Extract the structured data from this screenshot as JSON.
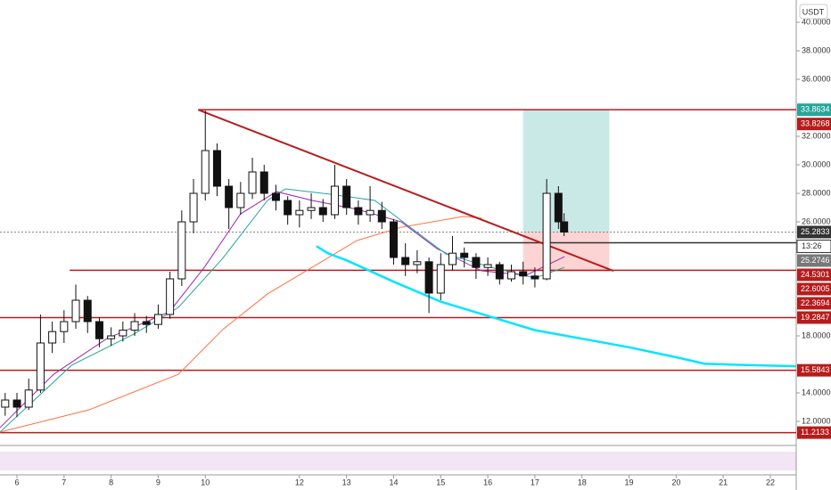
{
  "chart_data": {
    "type": "candlestick",
    "currency": "USDT",
    "countdown": "13:26",
    "xlim": [
      5.64,
      22.55
    ],
    "xticks": [
      6,
      7,
      8,
      9,
      10,
      12,
      13,
      14,
      15,
      16,
      17,
      18,
      19,
      20,
      21,
      22
    ],
    "ylim": [
      10.3125,
      41.5625
    ],
    "yticks": [
      {
        "value": 12,
        "label": "12.0000"
      },
      {
        "value": 14,
        "label": "14.0000"
      },
      {
        "value": 18,
        "label": "18.0000"
      },
      {
        "value": 26,
        "label": "26.0000"
      },
      {
        "value": 28,
        "label": "28.0000"
      },
      {
        "value": 30,
        "label": "30.0000"
      },
      {
        "value": 32,
        "label": "32.0000"
      },
      {
        "value": 36,
        "label": "36.0000"
      },
      {
        "value": 38,
        "label": "38.0000"
      },
      {
        "value": 40,
        "label": "40.0000"
      }
    ],
    "x": [
      5.75,
      6,
      6.25,
      6.5,
      6.75,
      7,
      7.25,
      7.5,
      7.75,
      8,
      8.25,
      8.5,
      8.75,
      9,
      9.25,
      9.5,
      9.75,
      10,
      10.25,
      10.5,
      10.75,
      11,
      11.25,
      11.5,
      11.75,
      12,
      12.25,
      12.5,
      12.75,
      13,
      13.25,
      13.5,
      13.75,
      14,
      14.25,
      14.5,
      14.75,
      15,
      15.25,
      15.5,
      15.75,
      16,
      16.25,
      16.5,
      16.75,
      17,
      17.25,
      17.5,
      17.62
    ],
    "open": [
      13.0,
      13.5,
      13.0,
      14.2,
      17.5,
      18.3,
      19.0,
      20.5,
      19.0,
      17.8,
      18.0,
      18.4,
      19.0,
      18.8,
      19.5,
      22.0,
      26.0,
      28.0,
      31.0,
      28.5,
      27.0,
      28.0,
      29.5,
      28.0,
      27.5,
      26.5,
      26.8,
      27.0,
      26.5,
      28.5,
      27.0,
      26.5,
      26.8,
      26.0,
      23.5,
      23.0,
      23.2,
      21.0,
      23.0,
      23.8,
      23.5,
      22.8,
      23.0,
      22.0,
      22.5,
      22.2,
      22.0,
      28.0,
      26.0
    ],
    "high": [
      14.0,
      14.0,
      15.0,
      19.5,
      19.0,
      19.8,
      21.6,
      20.8,
      19.3,
      18.6,
      19.0,
      19.6,
      19.4,
      20.2,
      22.5,
      26.8,
      29.0,
      33.8,
      31.5,
      29.0,
      28.8,
      30.5,
      30.0,
      28.6,
      27.8,
      27.5,
      28.0,
      27.6,
      30.0,
      29.0,
      27.5,
      28.5,
      27.4,
      26.2,
      24.5,
      24.0,
      23.5,
      23.8,
      25.0,
      24.2,
      23.8,
      23.5,
      23.2,
      23.0,
      23.2,
      22.8,
      29.0,
      28.5,
      26.6
    ],
    "low": [
      12.4,
      12.3,
      12.8,
      14.0,
      16.8,
      17.5,
      18.5,
      18.2,
      17.2,
      17.3,
      17.6,
      18.0,
      18.2,
      18.5,
      19.2,
      21.5,
      25.2,
      27.5,
      27.8,
      25.5,
      26.5,
      27.6,
      27.5,
      26.8,
      25.8,
      25.6,
      26.2,
      26.0,
      26.2,
      26.5,
      25.8,
      26.0,
      25.5,
      23.0,
      22.2,
      22.4,
      19.6,
      20.5,
      22.6,
      22.8,
      22.0,
      22.2,
      21.6,
      21.8,
      21.6,
      21.4,
      21.9,
      25.5,
      25.0
    ],
    "close": [
      13.5,
      13.0,
      14.2,
      17.5,
      18.3,
      19.0,
      20.5,
      19.0,
      17.8,
      18.0,
      18.4,
      19.0,
      18.8,
      19.5,
      22.0,
      26.0,
      28.0,
      31.0,
      28.5,
      27.0,
      28.0,
      29.5,
      28.0,
      27.5,
      26.5,
      26.8,
      27.0,
      26.5,
      28.5,
      27.0,
      26.5,
      26.8,
      26.0,
      23.5,
      23.0,
      23.2,
      21.0,
      23.0,
      23.8,
      23.5,
      22.8,
      23.0,
      22.0,
      22.5,
      22.2,
      22.0,
      28.0,
      26.0,
      25.2833
    ],
    "indicators": [
      {
        "color": "#ff7043",
        "x": [
          5.64,
          7.53,
          9.43,
          10.37,
          11.32,
          12.27,
          13.22,
          14.16,
          15.49,
          15.87
        ],
        "values": [
          11.25,
          12.81,
          15.31,
          18.44,
          20.94,
          22.81,
          24.69,
          25.62,
          26.38,
          26.25
        ]
      },
      {
        "color": "#9c27b0",
        "x": [
          5.64,
          6.78,
          7.91,
          9.24,
          9.98,
          10.75,
          11.51,
          12.27,
          13.22,
          14.16,
          14.92,
          15.87,
          16.81,
          17.63
        ],
        "values": [
          11.56,
          15.31,
          17.81,
          19.69,
          22.81,
          26.56,
          28.12,
          27.5,
          26.88,
          26.0,
          24.12,
          22.56,
          22.25,
          23.56
        ]
      },
      {
        "color": "#26a69a",
        "x": [
          5.64,
          7.16,
          8.48,
          9.43,
          10.37,
          11.32,
          11.7,
          12.65,
          13.6,
          14.35,
          15.11,
          16.06,
          17.0,
          17.63
        ],
        "values": [
          11.25,
          15.94,
          18.12,
          20.0,
          23.44,
          27.5,
          28.31,
          27.94,
          27.5,
          25.62,
          23.75,
          22.81,
          22.06,
          22.81
        ]
      },
      {
        "color": "#00e5ff",
        "x": [
          12.36,
          12.6,
          13.0,
          14.0,
          15.0,
          16.0,
          17.0,
          18.0,
          19.0,
          20.0,
          20.6,
          21.5,
          22.55
        ],
        "values": [
          24.3,
          23.8,
          23.3,
          21.8,
          20.4,
          19.4,
          18.4,
          17.8,
          17.2,
          16.5,
          16.05,
          15.95,
          15.87
        ]
      }
    ],
    "hlines": [
      {
        "value": 33.8634,
        "from": 9.85,
        "color": "#b71c1c"
      },
      {
        "value": 25.2833,
        "from": 5.64,
        "color": "#888888"
      },
      {
        "value": 24.5301,
        "from": 15.49,
        "color": "#333333"
      },
      {
        "value": 22.6005,
        "from": 7.12,
        "color": "#b71c1c"
      },
      {
        "value": 19.2847,
        "from": 5.64,
        "color": "#b71c1c"
      },
      {
        "value": 15.5843,
        "from": 5.64,
        "color": "#b71c1c"
      },
      {
        "value": 11.2133,
        "from": 5.64,
        "color": "#b71c1c"
      }
    ],
    "trendline": {
      "x": [
        9.85,
        18.67
      ],
      "values": [
        33.86,
        22.56
      ],
      "color": "#b71c1c"
    },
    "position": {
      "x": [
        16.75,
        18.58
      ],
      "entry": 25.31,
      "target": 33.8634,
      "stop": 22.5
    },
    "price_labels": [
      {
        "value": 33.8634,
        "color": "#26a69a"
      },
      {
        "value": 33.8268,
        "color": "#b71c1c"
      },
      {
        "value": 25.2833,
        "color": "#333333"
      },
      {
        "value": 25.2746,
        "color": "#787878"
      },
      {
        "value": 24.5301,
        "color": "#b71c1c"
      },
      {
        "value": 22.6005,
        "color": "#b71c1c"
      },
      {
        "value": 22.3694,
        "color": "#b71c1c"
      },
      {
        "value": 19.2847,
        "color": "#b71c1c"
      },
      {
        "value": 15.5843,
        "color": "#b71c1c"
      },
      {
        "value": 11.2133,
        "color": "#b71c1c"
      }
    ]
  }
}
